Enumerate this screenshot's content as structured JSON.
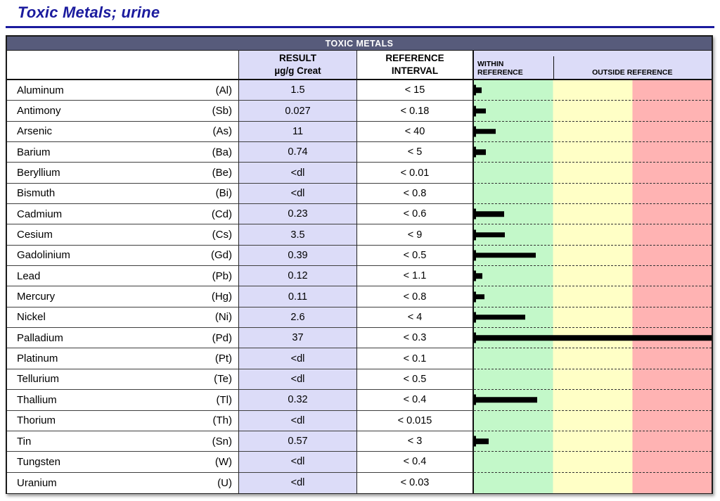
{
  "title": "Toxic Metals; urine",
  "report": {
    "band_title": "TOXIC METALS",
    "header": {
      "result_line1": "RESULT",
      "result_line2": "µg/g Creat",
      "reference_line1": "REFERENCE",
      "reference_line2": "INTERVAL",
      "within_line1": "WITHIN",
      "within_line2": "REFERENCE",
      "outside_label": "OUTSIDE REFERENCE"
    },
    "rows": [
      {
        "name": "Aluminum",
        "symbol": "(Al)",
        "result": "1.5",
        "reference": "< 15"
      },
      {
        "name": "Antimony",
        "symbol": "(Sb)",
        "result": "0.027",
        "reference": "< 0.18"
      },
      {
        "name": "Arsenic",
        "symbol": "(As)",
        "result": "11",
        "reference": "< 40"
      },
      {
        "name": "Barium",
        "symbol": "(Ba)",
        "result": "0.74",
        "reference": "< 5"
      },
      {
        "name": "Beryllium",
        "symbol": "(Be)",
        "result": "<dl",
        "reference": "< 0.01"
      },
      {
        "name": "Bismuth",
        "symbol": "(Bi)",
        "result": "<dl",
        "reference": "< 0.8"
      },
      {
        "name": "Cadmium",
        "symbol": "(Cd)",
        "result": "0.23",
        "reference": "< 0.6"
      },
      {
        "name": "Cesium",
        "symbol": "(Cs)",
        "result": "3.5",
        "reference": "< 9"
      },
      {
        "name": "Gadolinium",
        "symbol": "(Gd)",
        "result": "0.39",
        "reference": "< 0.5"
      },
      {
        "name": "Lead",
        "symbol": "(Pb)",
        "result": "0.12",
        "reference": "< 1.1"
      },
      {
        "name": "Mercury",
        "symbol": "(Hg)",
        "result": "0.11",
        "reference": "< 0.8"
      },
      {
        "name": "Nickel",
        "symbol": "(Ni)",
        "result": "2.6",
        "reference": "< 4"
      },
      {
        "name": "Palladium",
        "symbol": "(Pd)",
        "result": "37",
        "reference": "< 0.3"
      },
      {
        "name": "Platinum",
        "symbol": "(Pt)",
        "result": "<dl",
        "reference": "< 0.1"
      },
      {
        "name": "Tellurium",
        "symbol": "(Te)",
        "result": "<dl",
        "reference": "< 0.5"
      },
      {
        "name": "Thallium",
        "symbol": "(Tl)",
        "result": "0.32",
        "reference": "< 0.4"
      },
      {
        "name": "Thorium",
        "symbol": "(Th)",
        "result": "<dl",
        "reference": "< 0.015"
      },
      {
        "name": "Tin",
        "symbol": "(Sn)",
        "result": "0.57",
        "reference": "< 3"
      },
      {
        "name": "Tungsten",
        "symbol": "(W)",
        "result": "<dl",
        "reference": "< 0.4"
      },
      {
        "name": "Uranium",
        "symbol": "(U)",
        "result": "<dl",
        "reference": "< 0.03"
      }
    ]
  },
  "chart_data": {
    "type": "bar",
    "orientation": "horizontal",
    "title": "TOXIC METALS",
    "units": "µg/g Creat",
    "categories": [
      "Aluminum",
      "Antimony",
      "Arsenic",
      "Barium",
      "Beryllium",
      "Bismuth",
      "Cadmium",
      "Cesium",
      "Gadolinium",
      "Lead",
      "Mercury",
      "Nickel",
      "Palladium",
      "Platinum",
      "Tellurium",
      "Thallium",
      "Thorium",
      "Tin",
      "Tungsten",
      "Uranium"
    ],
    "values": [
      1.5,
      0.027,
      11,
      0.74,
      null,
      null,
      0.23,
      3.5,
      0.39,
      0.12,
      0.11,
      2.6,
      37,
      null,
      null,
      0.32,
      null,
      0.57,
      null,
      null
    ],
    "reference_limits": [
      15,
      0.18,
      40,
      5,
      0.01,
      0.8,
      0.6,
      9,
      0.5,
      1.1,
      0.8,
      4,
      0.3,
      0.1,
      0.5,
      0.4,
      0.015,
      3,
      0.4,
      0.03
    ],
    "below_detection_label": "<dl",
    "zones": [
      {
        "label": "WITHIN REFERENCE",
        "fraction_of_axis": 0.3333
      },
      {
        "label": "OUTSIDE REFERENCE",
        "fraction_of_axis": 0.6667
      }
    ],
    "bar_scale": "bar length = (value / reference_limit) of the WITHIN REFERENCE zone width, capped at full axis width",
    "legend_position": "top",
    "grid": "dashed row separators in chart area only"
  },
  "colors": {
    "title_blue": "#1b1b9e",
    "band_slate": "#575b7b",
    "lavender": "#dcdcf8",
    "zone_green": "#c3f8c9",
    "zone_yellow": "#ffffc6",
    "zone_red": "#ffb3b3",
    "bar_black": "#000000"
  }
}
